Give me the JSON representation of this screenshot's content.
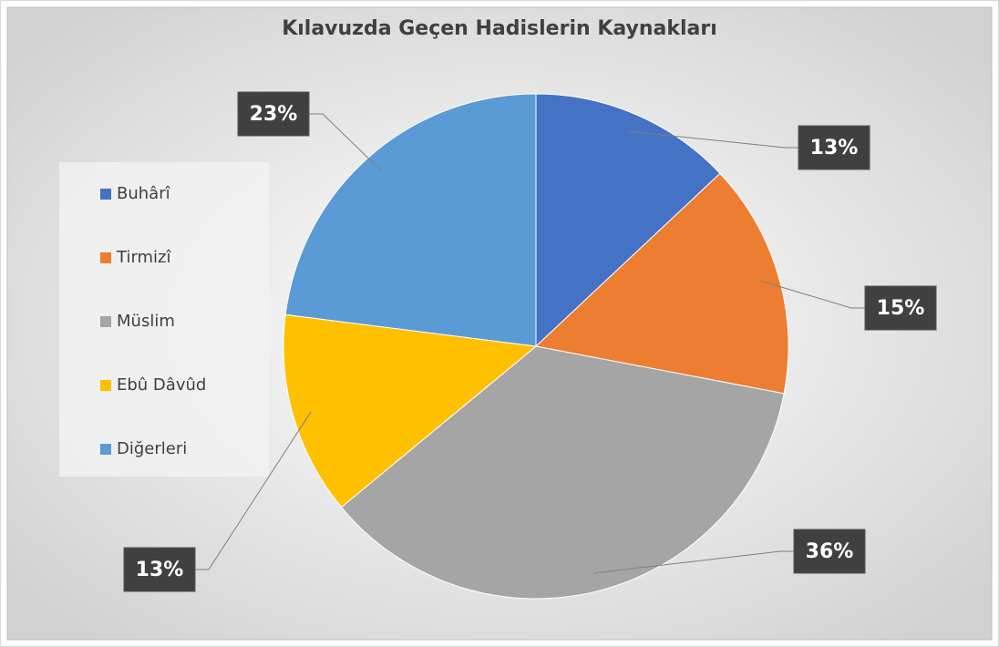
{
  "chart_data": {
    "type": "pie",
    "title": "Kılavuzda Geçen Hadislerin Kaynakları",
    "categories": [
      "Buhârî",
      "Tirmizî",
      "Müslim",
      "Ebû Dâvûd",
      "Diğerleri"
    ],
    "values": [
      13,
      15,
      36,
      13,
      23
    ],
    "value_labels": [
      "13%",
      "15%",
      "36%",
      "13%",
      "23%"
    ],
    "colors": [
      "#4472c4",
      "#ed7d31",
      "#a5a5a5",
      "#ffc000",
      "#5b9bd5"
    ],
    "legend": "left"
  }
}
